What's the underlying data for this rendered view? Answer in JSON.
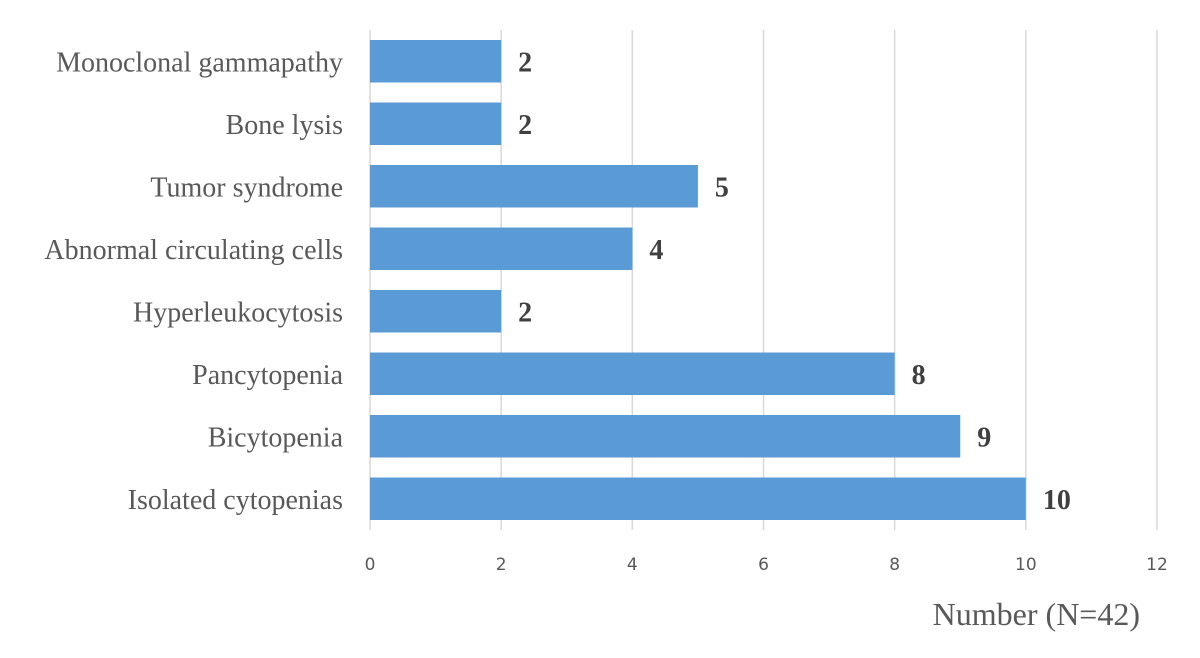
{
  "chart_data": {
    "type": "bar",
    "orientation": "horizontal",
    "title": "",
    "xlabel": "Number (N=42)",
    "ylabel": "",
    "categories": [
      "Monoclonal gammapathy",
      "Bone lysis",
      "Tumor syndrome",
      "Abnormal circulating cells",
      "Hyperleukocytosis",
      "Pancytopenia",
      "Bicytopenia",
      "Isolated cytopenias"
    ],
    "values": [
      2,
      2,
      5,
      4,
      2,
      8,
      9,
      10
    ],
    "data_labels": [
      "2",
      "2",
      "5",
      "4",
      "2",
      "8",
      "9",
      "10"
    ],
    "xlim": [
      0,
      12
    ],
    "x_ticks": [
      0,
      2,
      4,
      6,
      8,
      10,
      12
    ],
    "x_tick_labels": [
      "0",
      "2",
      "4",
      "6",
      "8",
      "10",
      "12"
    ],
    "grid": "vertical",
    "legend": "none",
    "colors": {
      "bar": "#5b9bd5",
      "grid": "#d9d9d9",
      "text": "#595959",
      "data_label": "#404040"
    }
  }
}
